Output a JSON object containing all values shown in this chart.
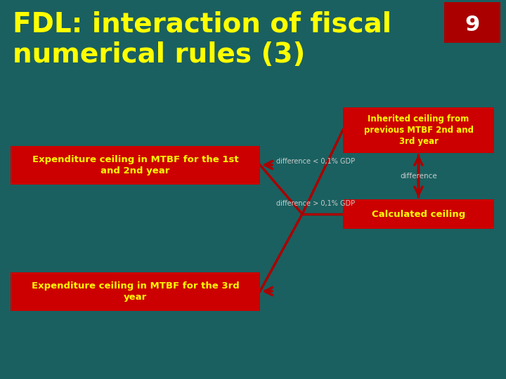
{
  "bg_color": "#1a6060",
  "title": "FDL: interaction of fiscal\nnumerical rules (3)",
  "title_color": "#ffff00",
  "title_fontsize": 28,
  "page_number": "9",
  "page_num_bg": "#aa0000",
  "page_num_color": "#ffffff",
  "box_color": "#cc0000",
  "box_text_color": "#ffff00",
  "arrow_color": "#aa0000",
  "label_color": "#cccccc",
  "box1_text": "Expenditure ceiling in MTBF for the 1st\nand 2nd year",
  "box2_text": "Expenditure ceiling in MTBF for the 3rd\nyear",
  "box3_text": "Inherited ceiling from\nprevious MTBF 2nd and\n3rd year",
  "box4_text": "Calculated ceiling",
  "label_top": "difference < 0,1% GDP",
  "label_bottom": "difference > 0,1% GDP",
  "label_mid": "difference"
}
